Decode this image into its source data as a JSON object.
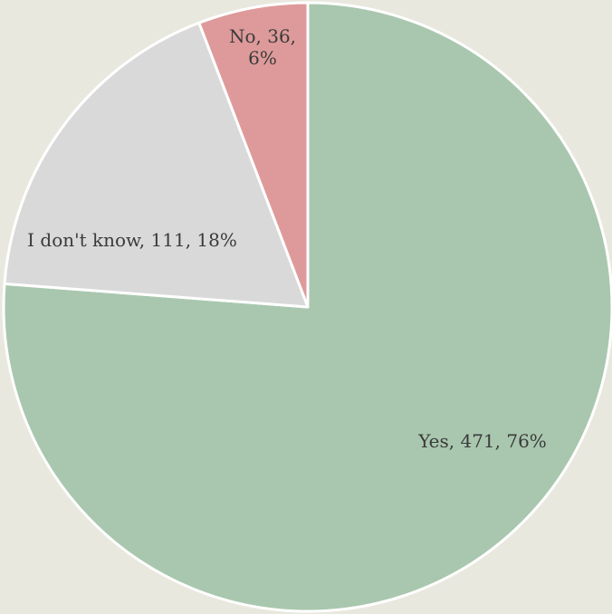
{
  "colors": {
    "background": "#e9e8df",
    "yes": "#a9c7ae",
    "dont_know": "#d9d9d9",
    "no": "#de9a9a"
  },
  "chart_data": {
    "type": "pie",
    "title": "",
    "slices": [
      {
        "name": "No",
        "value": 36,
        "percent": 6,
        "color": "#de9a9a",
        "label_lines": [
          "No, 36,",
          "6%"
        ]
      },
      {
        "name": "Yes",
        "value": 471,
        "percent": 76,
        "color": "#a9c7ae",
        "label_lines": [
          "Yes, 471, 76%"
        ]
      },
      {
        "name": "I don't know",
        "value": 111,
        "percent": 18,
        "color": "#d9d9d9",
        "label_lines": [
          "I don't know, 111, 18%"
        ]
      }
    ],
    "legend": "none",
    "data_labels": "name, value, percent"
  }
}
